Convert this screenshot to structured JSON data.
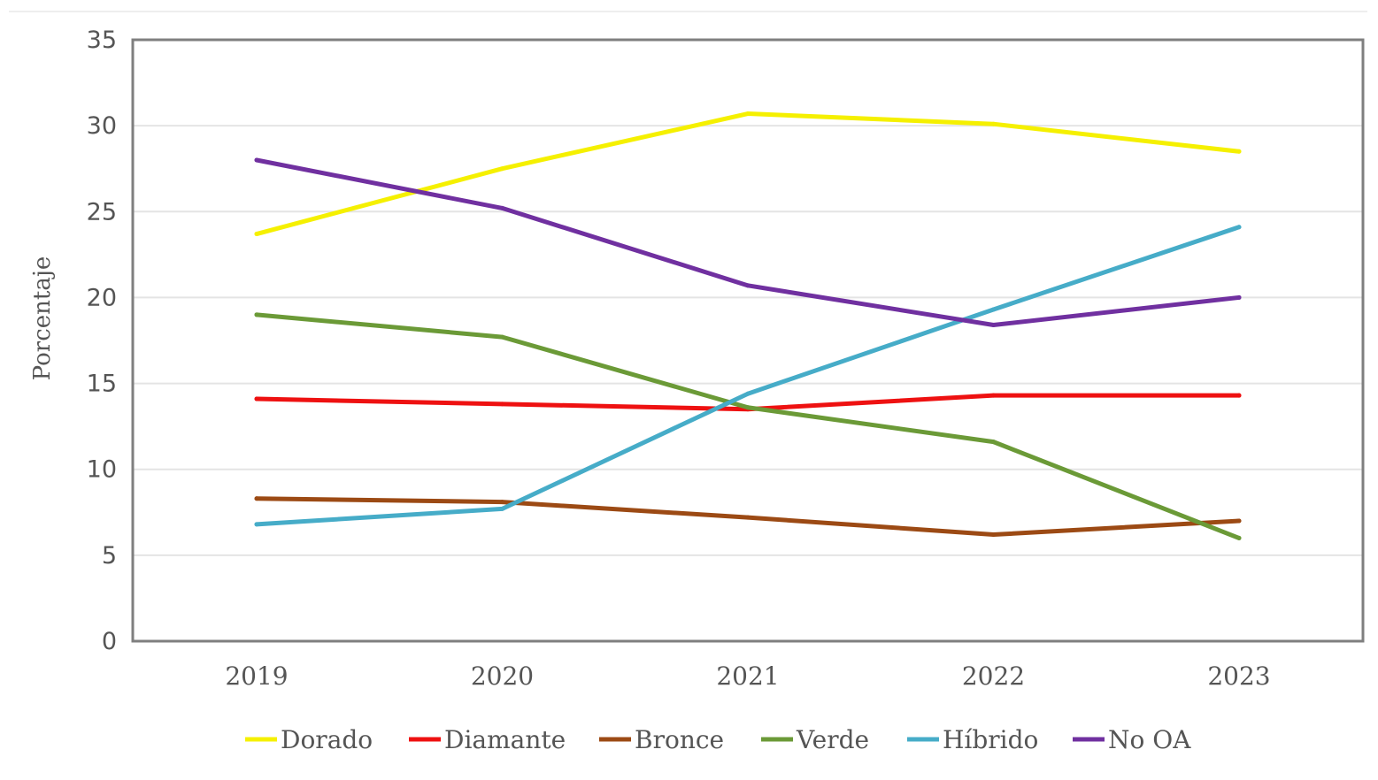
{
  "chart_data": {
    "type": "line",
    "title": "",
    "xlabel": "",
    "ylabel": "Porcentaje",
    "categories": [
      "2019",
      "2020",
      "2021",
      "2022",
      "2023"
    ],
    "ylim": [
      0,
      35
    ],
    "yticks": [
      0,
      5,
      10,
      15,
      20,
      25,
      30,
      35
    ],
    "grid": true,
    "legend_position": "bottom",
    "series": [
      {
        "name": "Dorado",
        "color": "#f5f000",
        "values": [
          23.7,
          27.5,
          30.7,
          30.1,
          28.5
        ]
      },
      {
        "name": "Diamante",
        "color": "#ee1111",
        "values": [
          14.1,
          13.8,
          13.5,
          14.3,
          14.3
        ]
      },
      {
        "name": "Bronce",
        "color": "#9c4a14",
        "values": [
          8.3,
          8.1,
          7.2,
          6.2,
          7.0
        ]
      },
      {
        "name": "Verde",
        "color": "#6b9a37",
        "values": [
          19.0,
          17.7,
          13.6,
          11.6,
          6.0
        ]
      },
      {
        "name": "Híbrido",
        "color": "#46acc8",
        "values": [
          6.8,
          7.7,
          14.4,
          19.3,
          24.1
        ]
      },
      {
        "name": "No OA",
        "color": "#7030a0",
        "values": [
          28.0,
          25.2,
          20.7,
          18.4,
          20.0
        ]
      }
    ]
  }
}
